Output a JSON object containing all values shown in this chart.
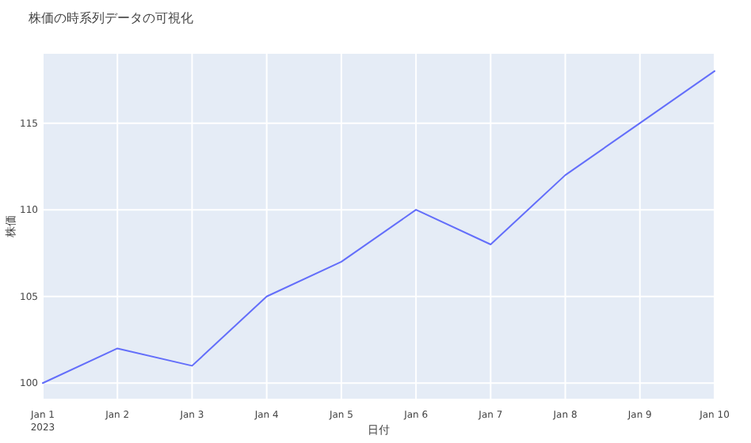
{
  "chart_data": {
    "type": "line",
    "title": "株価の時系列データの可視化",
    "xlabel": "日付",
    "ylabel": "株価",
    "x": [
      "2023-01-01",
      "2023-01-02",
      "2023-01-03",
      "2023-01-04",
      "2023-01-05",
      "2023-01-06",
      "2023-01-07",
      "2023-01-08",
      "2023-01-09",
      "2023-01-10"
    ],
    "series": [
      {
        "color": "#636efa",
        "values": [
          100,
          102,
          101,
          105,
          107,
          110,
          108,
          112,
          115,
          118
        ]
      }
    ],
    "xlim": [
      "2023-01-01",
      "2023-01-10"
    ],
    "xticks": [
      {
        "value": "2023-01-01",
        "label": "Jan 1\n2023"
      },
      {
        "value": "2023-01-02",
        "label": "Jan 2"
      },
      {
        "value": "2023-01-03",
        "label": "Jan 3"
      },
      {
        "value": "2023-01-04",
        "label": "Jan 4"
      },
      {
        "value": "2023-01-05",
        "label": "Jan 5"
      },
      {
        "value": "2023-01-06",
        "label": "Jan 6"
      },
      {
        "value": "2023-01-07",
        "label": "Jan 7"
      },
      {
        "value": "2023-01-08",
        "label": "Jan 8"
      },
      {
        "value": "2023-01-09",
        "label": "Jan 9"
      },
      {
        "value": "2023-01-10",
        "label": "Jan 10"
      }
    ],
    "ylim": [
      99.1,
      119
    ],
    "yticks": [
      100,
      105,
      110,
      115
    ],
    "grid": true,
    "marker": "none",
    "line_style": "solid"
  }
}
